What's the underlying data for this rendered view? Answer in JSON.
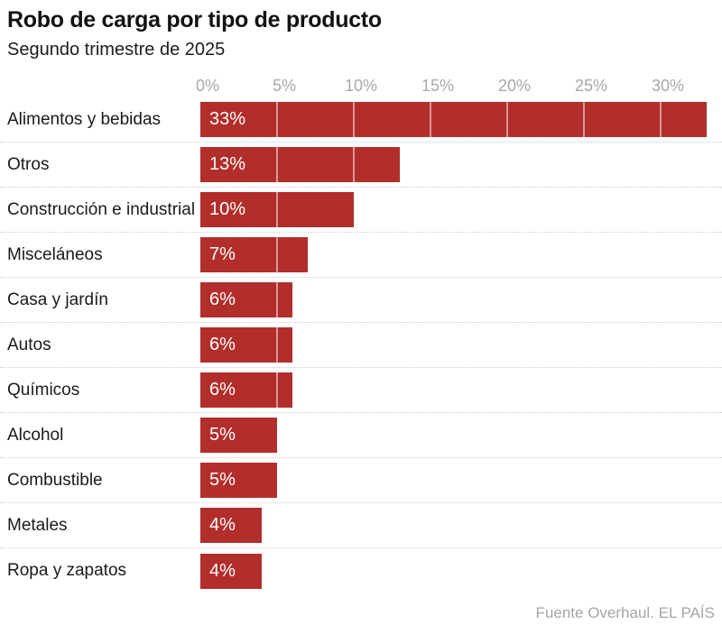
{
  "chart": {
    "title": "Robo de carga por tipo de producto",
    "subtitle": "Segundo trimestre de 2025",
    "source": "Fuente Overhaul. EL PAÍS"
  },
  "chart_data": {
    "type": "bar",
    "orientation": "horizontal",
    "title": "Robo de carga por tipo de producto",
    "subtitle": "Segundo trimestre de 2025",
    "source": "Fuente Overhaul. EL PAÍS",
    "categories": [
      "Alimentos y bebidas",
      "Otros",
      "Construcción e industrial",
      "Misceláneos",
      "Casa y jardín",
      "Autos",
      "Químicos",
      "Alcohol",
      "Combustible",
      "Metales",
      "Ropa y zapatos"
    ],
    "values": [
      33,
      13,
      10,
      7,
      6,
      6,
      6,
      5,
      5,
      4,
      4
    ],
    "value_labels": [
      "33%",
      "13%",
      "10%",
      "7%",
      "6%",
      "6%",
      "6%",
      "5%",
      "5%",
      "4%",
      "4%"
    ],
    "x_ticks": [
      0,
      5,
      10,
      15,
      20,
      25,
      30
    ],
    "x_tick_labels": [
      "0%",
      "5%",
      "10%",
      "15%",
      "20%",
      "25%",
      "30%"
    ],
    "xlim": [
      0,
      33
    ],
    "grid_interval": 5,
    "grid": "inside-bars-only",
    "legend": "none",
    "bar_color": "#b22e2b",
    "gridline_color": "rgba(255,255,255,0.5)",
    "separator_color": "#cfcfcf",
    "tick_label_color": "#a8a8a8",
    "value_label_color": "#ffffff"
  }
}
